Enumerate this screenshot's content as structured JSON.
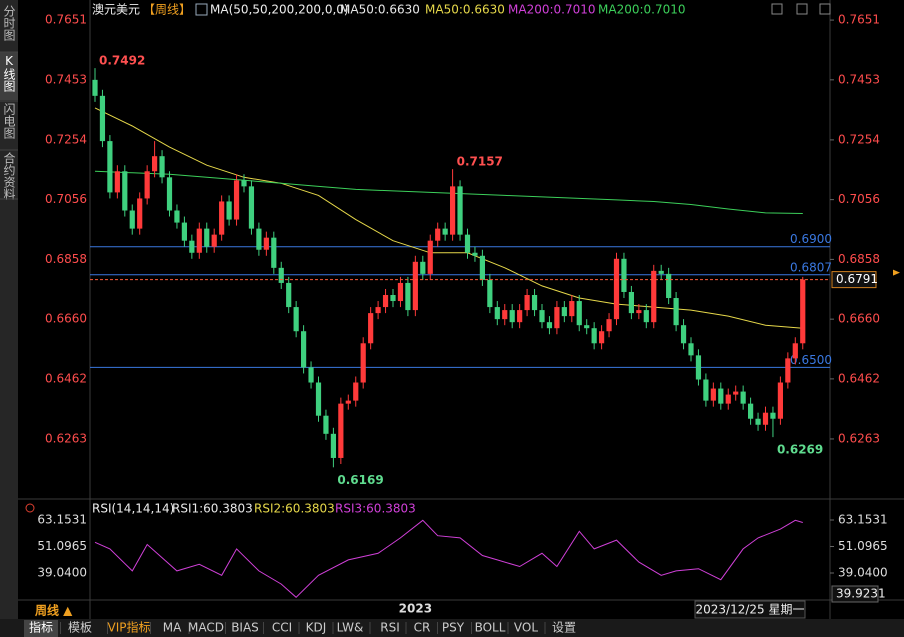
{
  "sidebar": [
    "分时图",
    "K线图",
    "闪电图",
    "合约资料"
  ],
  "header": {
    "symbol": "澳元美元",
    "period": "【周线】",
    "ma_params": "MA(50,50,200,200,0,0)",
    "readouts": [
      {
        "text": "MA50:0.6630",
        "color": "#e8e8e8"
      },
      {
        "text": "MA50:0.6630",
        "color": "#e6d84a"
      },
      {
        "text": "MA200:0.7010",
        "color": "#d040d8"
      },
      {
        "text": "MA200:0.7010",
        "color": "#3ccf5a"
      }
    ]
  },
  "chart_data": [
    {
      "type": "candlestick",
      "up_color": "#ff3a3a",
      "down_color": "#3fd07f",
      "categories": [
        null,
        null,
        null,
        null,
        null,
        null,
        null,
        null,
        null,
        null,
        null,
        null,
        null,
        null,
        null,
        null,
        null,
        null,
        null,
        null,
        null,
        null,
        null,
        null,
        null,
        null,
        null,
        null,
        null,
        null,
        null,
        null,
        null,
        null,
        null,
        null,
        null,
        null,
        null,
        null,
        null,
        null,
        null,
        "2023",
        null,
        null,
        null,
        null,
        null,
        null,
        null,
        null,
        null,
        null,
        null,
        null,
        null,
        null,
        null,
        null,
        null,
        null,
        null,
        null,
        null,
        null,
        null,
        null,
        null,
        null,
        null,
        null,
        null,
        null,
        null,
        null,
        null,
        null,
        null,
        null,
        null,
        null,
        null,
        null,
        null,
        null,
        null,
        null,
        null,
        null,
        null,
        null,
        null,
        null,
        null,
        null
      ],
      "open": [
        0.7453,
        0.74,
        0.725,
        0.708,
        0.715,
        0.702,
        0.696,
        0.706,
        0.715,
        0.72,
        0.713,
        0.702,
        0.698,
        0.692,
        0.688,
        0.696,
        0.69,
        0.694,
        0.705,
        0.699,
        0.712,
        0.71,
        0.696,
        0.689,
        0.693,
        0.683,
        0.678,
        0.67,
        0.662,
        0.65,
        0.645,
        0.634,
        0.628,
        0.62,
        0.638,
        0.639,
        0.645,
        0.658,
        0.668,
        0.67,
        0.674,
        0.672,
        0.678,
        0.669,
        0.685,
        0.681,
        0.692,
        0.696,
        0.694,
        0.71,
        0.694,
        0.688,
        0.687,
        0.679,
        0.67,
        0.666,
        0.669,
        0.665,
        0.669,
        0.674,
        0.669,
        0.665,
        0.663,
        0.67,
        0.667,
        0.672,
        0.664,
        0.663,
        0.658,
        0.662,
        0.666,
        0.686,
        0.675,
        0.668,
        0.669,
        0.665,
        0.682,
        0.681,
        0.673,
        0.664,
        0.658,
        0.654,
        0.646,
        0.639,
        0.643,
        0.638,
        0.641,
        0.642,
        0.638,
        0.633,
        0.631,
        0.635,
        0.633,
        0.645,
        0.653,
        0.658
      ],
      "high": [
        0.7492,
        0.742,
        0.727,
        0.717,
        0.717,
        0.704,
        0.708,
        0.717,
        0.725,
        0.722,
        0.715,
        0.704,
        0.7,
        0.694,
        0.698,
        0.698,
        0.696,
        0.707,
        0.707,
        0.714,
        0.714,
        0.712,
        0.698,
        0.695,
        0.695,
        0.685,
        0.68,
        0.672,
        0.664,
        0.652,
        0.647,
        0.636,
        0.63,
        0.64,
        0.641,
        0.647,
        0.66,
        0.67,
        0.672,
        0.676,
        0.676,
        0.68,
        0.68,
        0.687,
        0.687,
        0.694,
        0.698,
        0.698,
        0.7157,
        0.712,
        0.696,
        0.69,
        0.689,
        0.681,
        0.672,
        0.671,
        0.671,
        0.671,
        0.676,
        0.676,
        0.671,
        0.667,
        0.672,
        0.672,
        0.674,
        0.674,
        0.666,
        0.665,
        0.664,
        0.668,
        0.688,
        0.688,
        0.677,
        0.671,
        0.671,
        0.684,
        0.684,
        0.683,
        0.675,
        0.666,
        0.66,
        0.656,
        0.648,
        0.645,
        0.645,
        0.643,
        0.644,
        0.644,
        0.64,
        0.635,
        0.637,
        0.637,
        0.647,
        0.655,
        0.66,
        0.68
      ],
      "low": [
        0.738,
        0.723,
        0.706,
        0.706,
        0.7,
        0.694,
        0.694,
        0.704,
        0.713,
        0.711,
        0.7,
        0.696,
        0.69,
        0.686,
        0.686,
        0.688,
        0.688,
        0.692,
        0.697,
        0.697,
        0.708,
        0.694,
        0.687,
        0.687,
        0.681,
        0.676,
        0.668,
        0.66,
        0.648,
        0.643,
        0.632,
        0.626,
        0.6169,
        0.618,
        0.636,
        0.637,
        0.643,
        0.656,
        0.666,
        0.668,
        0.67,
        0.67,
        0.667,
        0.667,
        0.679,
        0.679,
        0.69,
        0.692,
        0.692,
        0.692,
        0.686,
        0.685,
        0.677,
        0.668,
        0.664,
        0.664,
        0.663,
        0.663,
        0.667,
        0.667,
        0.663,
        0.661,
        0.661,
        0.665,
        0.665,
        0.662,
        0.661,
        0.656,
        0.656,
        0.66,
        0.664,
        0.673,
        0.666,
        0.666,
        0.663,
        0.663,
        0.679,
        0.671,
        0.662,
        0.656,
        0.652,
        0.644,
        0.637,
        0.637,
        0.636,
        0.636,
        0.639,
        0.636,
        0.631,
        0.629,
        0.629,
        0.6269,
        0.631,
        0.643,
        0.651,
        0.656
      ],
      "close": [
        0.74,
        0.725,
        0.708,
        0.715,
        0.702,
        0.696,
        0.706,
        0.715,
        0.72,
        0.713,
        0.702,
        0.698,
        0.692,
        0.688,
        0.696,
        0.69,
        0.694,
        0.705,
        0.699,
        0.712,
        0.71,
        0.696,
        0.689,
        0.693,
        0.683,
        0.678,
        0.67,
        0.662,
        0.65,
        0.645,
        0.634,
        0.628,
        0.62,
        0.638,
        0.639,
        0.645,
        0.658,
        0.668,
        0.67,
        0.674,
        0.672,
        0.678,
        0.669,
        0.685,
        0.681,
        0.692,
        0.696,
        0.694,
        0.71,
        0.694,
        0.688,
        0.687,
        0.679,
        0.67,
        0.666,
        0.669,
        0.665,
        0.669,
        0.674,
        0.669,
        0.665,
        0.663,
        0.67,
        0.667,
        0.672,
        0.664,
        0.663,
        0.658,
        0.662,
        0.666,
        0.686,
        0.675,
        0.668,
        0.669,
        0.665,
        0.682,
        0.681,
        0.673,
        0.664,
        0.658,
        0.654,
        0.646,
        0.639,
        0.643,
        0.638,
        0.641,
        0.642,
        0.638,
        0.633,
        0.631,
        0.635,
        0.633,
        0.645,
        0.653,
        0.658,
        0.6791
      ],
      "high_value_labels": [
        "0.7492",
        null,
        null,
        null,
        null,
        null,
        null,
        null,
        null,
        null,
        null,
        null,
        null,
        null,
        null,
        null,
        null,
        null,
        null,
        null,
        null,
        null,
        null,
        null,
        null,
        null,
        null,
        null,
        null,
        null,
        null,
        null,
        null,
        null,
        null,
        null,
        null,
        null,
        null,
        null,
        null,
        null,
        null,
        null,
        null,
        null,
        null,
        null,
        "0.7157",
        null,
        null,
        null,
        null,
        null,
        null,
        null,
        null,
        null,
        null,
        null,
        null,
        null,
        null,
        null,
        null,
        null,
        null,
        null,
        null,
        null,
        null,
        null,
        null,
        null,
        null,
        null,
        null,
        null,
        null,
        null,
        null,
        null,
        null,
        null,
        null,
        null,
        null,
        null,
        null,
        null,
        null,
        null,
        null,
        null,
        null,
        null
      ],
      "low_value_labels": [
        null,
        null,
        null,
        null,
        null,
        null,
        null,
        null,
        null,
        null,
        null,
        null,
        null,
        null,
        null,
        null,
        null,
        null,
        null,
        null,
        null,
        null,
        null,
        null,
        null,
        null,
        null,
        null,
        null,
        null,
        null,
        null,
        "0.6169",
        null,
        null,
        null,
        null,
        null,
        null,
        null,
        null,
        null,
        null,
        null,
        null,
        null,
        null,
        null,
        null,
        null,
        null,
        null,
        null,
        null,
        null,
        null,
        null,
        null,
        null,
        null,
        null,
        null,
        null,
        null,
        null,
        null,
        null,
        null,
        null,
        null,
        null,
        null,
        null,
        null,
        null,
        null,
        null,
        null,
        null,
        null,
        null,
        null,
        null,
        null,
        null,
        null,
        null,
        null,
        null,
        null,
        null,
        "0.6269",
        null,
        null,
        null,
        null
      ],
      "ma_lines": [
        {
          "name": "MA50",
          "color": "#e6d84a",
          "x": [
            0,
            5,
            10,
            15,
            20,
            25,
            30,
            35,
            40,
            45,
            50,
            55,
            60,
            65,
            70,
            75,
            80,
            85,
            90,
            95
          ],
          "values": [
            0.736,
            0.73,
            0.723,
            0.717,
            0.713,
            0.711,
            0.707,
            0.699,
            0.692,
            0.688,
            0.688,
            0.683,
            0.677,
            0.673,
            0.671,
            0.67,
            0.669,
            0.667,
            0.664,
            0.663
          ]
        },
        {
          "name": "MA200",
          "color": "#3ccf5a",
          "x": [
            0,
            5,
            10,
            15,
            20,
            25,
            30,
            35,
            40,
            45,
            50,
            55,
            60,
            65,
            70,
            75,
            80,
            85,
            90,
            95
          ],
          "values": [
            0.715,
            0.7145,
            0.714,
            0.713,
            0.712,
            0.711,
            0.71,
            0.709,
            0.7085,
            0.708,
            0.7075,
            0.707,
            0.7065,
            0.706,
            0.7055,
            0.705,
            0.704,
            0.7025,
            0.7012,
            0.701
          ]
        }
      ],
      "hlines": [
        {
          "value": 0.69,
          "label": "0.6900"
        },
        {
          "value": 0.6807,
          "label": "0.6807"
        },
        {
          "value": 0.65,
          "label": "0.6500"
        }
      ],
      "hline_color": "#3a78e0",
      "ylim": [
        0.6064,
        0.7701
      ],
      "yticks": [
        0.7651,
        0.7453,
        0.7254,
        0.7056,
        0.6858,
        {
          "value": 0.666,
          "label": "0.6660"
        },
        0.6462,
        0.6263
      ]
    },
    {
      "type": "line",
      "title": "RSI(14,14,14)",
      "readouts": [
        {
          "text": "RSI1:60.3803",
          "color": "#e8e8e8"
        },
        {
          "text": "RSI2:60.3803",
          "color": "#e6d84a"
        },
        {
          "text": "RSI3:60.3803",
          "color": "#d040d8"
        }
      ],
      "color": "#d040d8",
      "x": [
        0,
        2,
        5,
        7,
        9,
        11,
        14,
        17,
        19,
        22,
        25,
        27,
        30,
        34,
        38,
        41,
        44,
        46,
        49,
        52,
        54,
        57,
        60,
        62,
        65,
        67,
        70,
        73,
        76,
        78,
        81,
        84,
        87,
        89,
        92,
        94,
        95
      ],
      "values": [
        53,
        50,
        40,
        52,
        46,
        40,
        43,
        38,
        50,
        40,
        34,
        28,
        38,
        45,
        48,
        55,
        63,
        56,
        55,
        47,
        45,
        42,
        48,
        42,
        58,
        50,
        54,
        44,
        38,
        40,
        41,
        36,
        50,
        55,
        59,
        63,
        62
      ],
      "ylim": [
        26.76,
        72.25
      ],
      "yticks": [
        63.1531,
        51.0965,
        {
          "value": 39.04,
          "label": "39.0400"
        }
      ],
      "axis_readout": 39.9231
    }
  ],
  "footer": {
    "period": "周线 ▲",
    "date": "2023/12/25 星期一",
    "toolbar": [
      "指标",
      "模板",
      "VIP指标",
      "MA",
      "MACD",
      "BIAS",
      "CCI",
      "KDJ",
      "LW&",
      "RSI",
      "CR",
      "PSY",
      "BOLL",
      "VOL",
      "设置"
    ]
  }
}
